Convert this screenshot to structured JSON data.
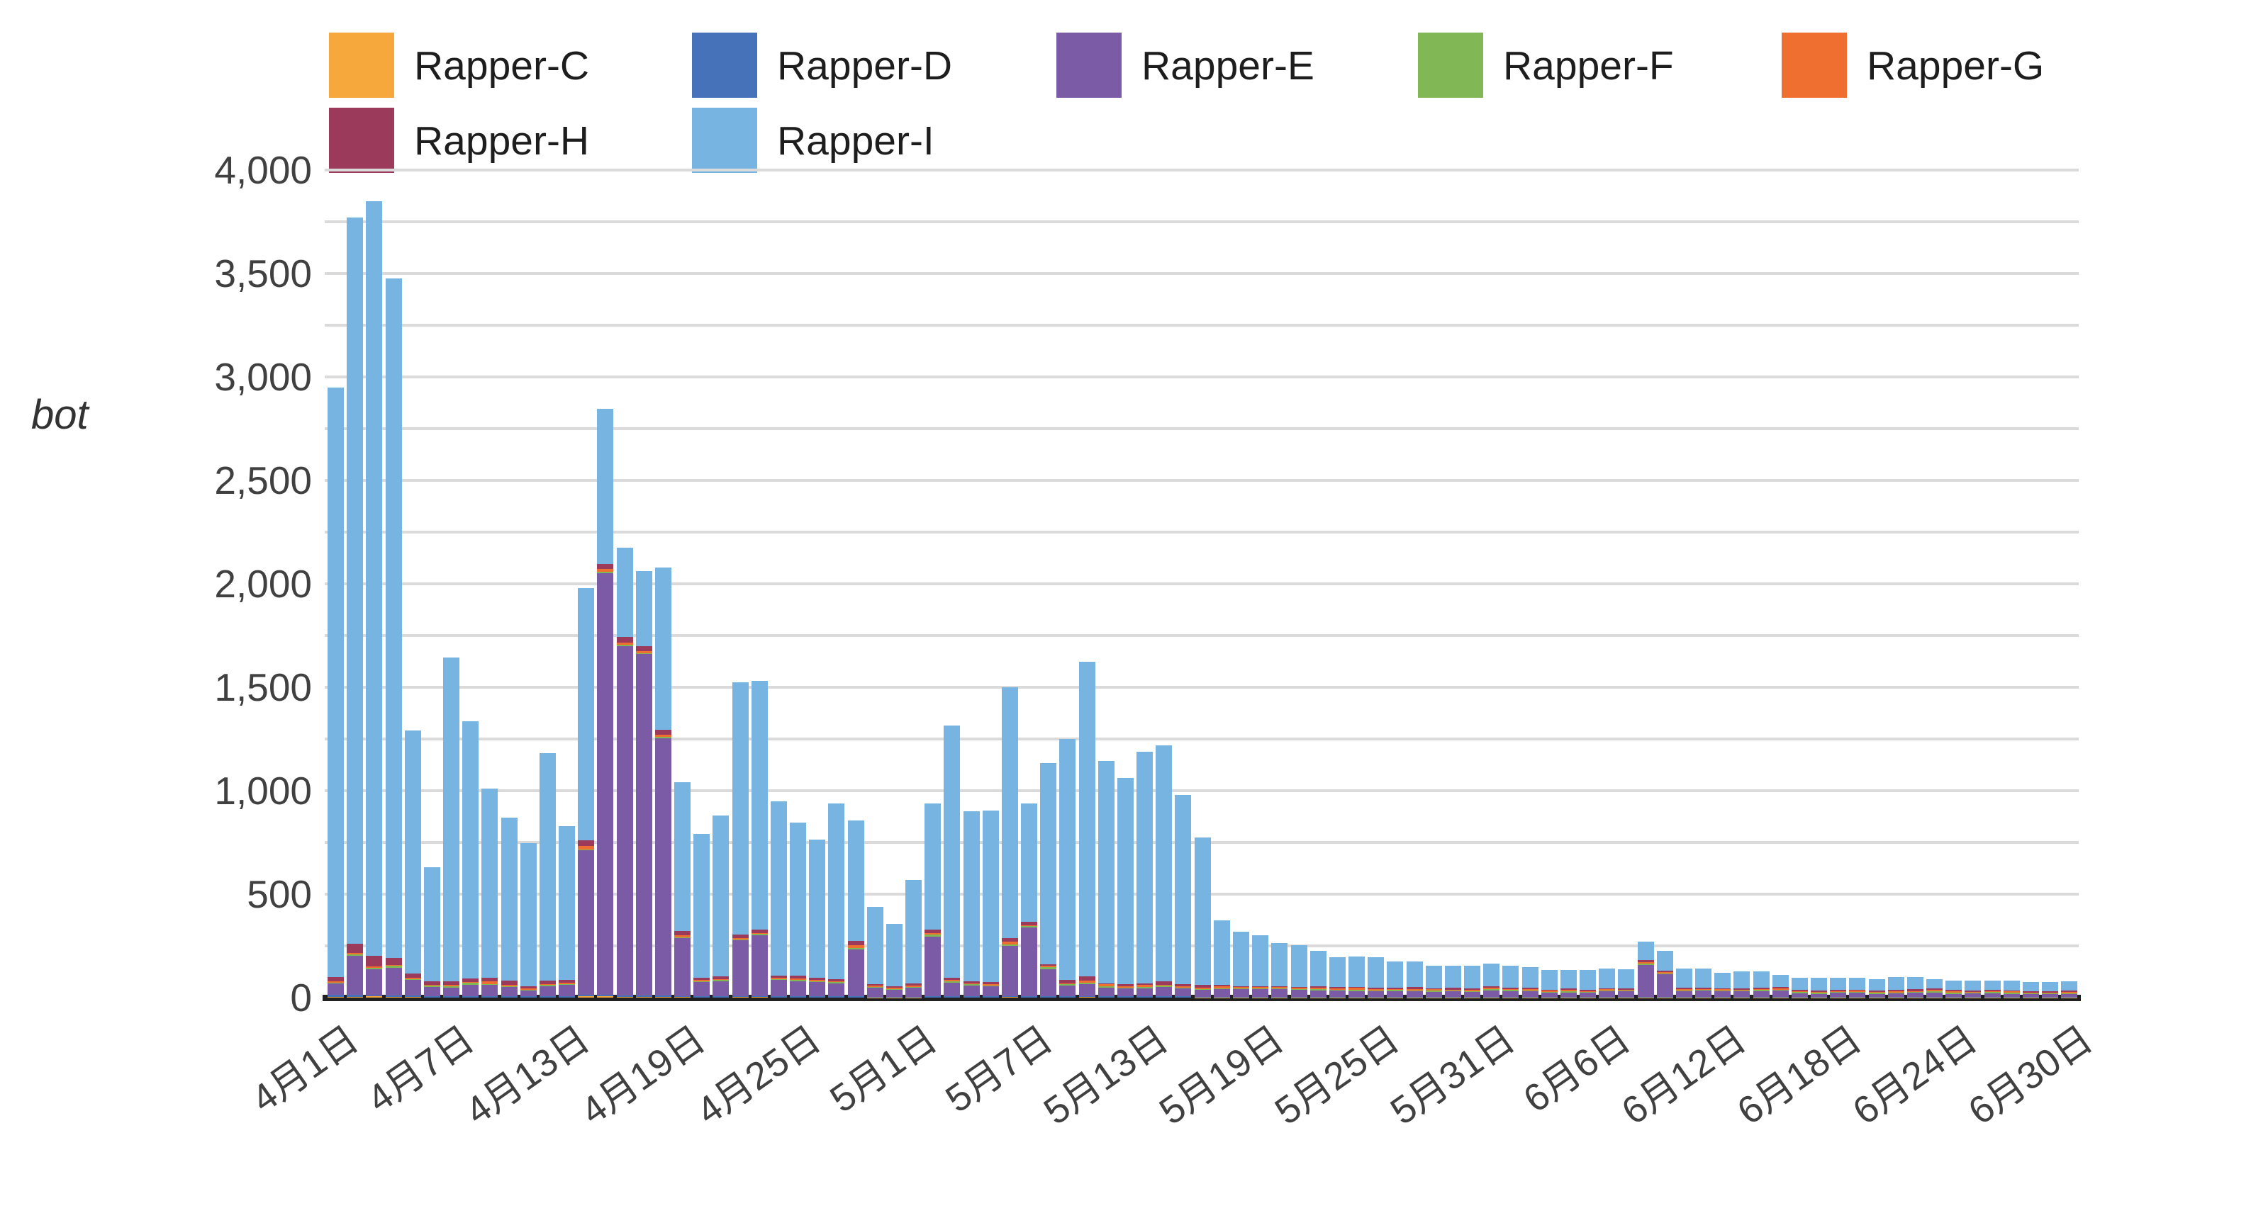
{
  "chart_data": {
    "type": "bar",
    "stacked": true,
    "title": "",
    "ylabel": "bot",
    "ylim": [
      0,
      4000
    ],
    "gridline_interval": 250,
    "label_interval": 500,
    "grid": "on",
    "legend_position": "top-left-two-rows",
    "yticklabels": [
      "0",
      "500",
      "1,000",
      "1,500",
      "2,000",
      "2,500",
      "3,000",
      "3,500",
      "4,000"
    ],
    "xticklabels": [
      "4月1日",
      "4月7日",
      "4月13日",
      "4月19日",
      "4月25日",
      "5月1日",
      "5月7日",
      "5月13日",
      "5月19日",
      "5月25日",
      "5月31日",
      "6月6日",
      "6月12日",
      "6月18日",
      "6月24日",
      "6月30日"
    ],
    "xtick_label_every_n": 6,
    "dates": [
      "4月1日",
      "4月2日",
      "4月3日",
      "4月4日",
      "4月5日",
      "4月6日",
      "4月7日",
      "4月8日",
      "4月9日",
      "4月10日",
      "4月11日",
      "4月12日",
      "4月13日",
      "4月14日",
      "4月15日",
      "4月16日",
      "4月17日",
      "4月18日",
      "4月19日",
      "4月20日",
      "4月21日",
      "4月22日",
      "4月23日",
      "4月24日",
      "4月25日",
      "4月26日",
      "4月27日",
      "4月28日",
      "4月29日",
      "4月30日",
      "5月1日",
      "5月2日",
      "5月3日",
      "5月4日",
      "5月5日",
      "5月6日",
      "5月7日",
      "5月8日",
      "5月9日",
      "5月10日",
      "5月11日",
      "5月12日",
      "5月13日",
      "5月14日",
      "5月15日",
      "5月16日",
      "5月17日",
      "5月18日",
      "5月19日",
      "5月20日",
      "5月21日",
      "5月22日",
      "5月23日",
      "5月24日",
      "5月25日",
      "5月26日",
      "5月27日",
      "5月28日",
      "5月29日",
      "5月30日",
      "5月31日",
      "6月1日",
      "6月2日",
      "6月3日",
      "6月4日",
      "6月5日",
      "6月6日",
      "6月7日",
      "6月8日",
      "6月9日",
      "6月10日",
      "6月11日",
      "6月12日",
      "6月13日",
      "6月14日",
      "6月15日",
      "6月16日",
      "6月17日",
      "6月18日",
      "6月19日",
      "6月20日",
      "6月21日",
      "6月22日",
      "6月23日",
      "6月24日",
      "6月25日",
      "6月26日",
      "6月27日",
      "6月28日",
      "6月29日",
      "6月30日"
    ],
    "series": [
      {
        "name": "Rapper-C",
        "color": "#F6A83C",
        "values": [
          5,
          5,
          6,
          6,
          6,
          4,
          4,
          4,
          4,
          4,
          4,
          4,
          4,
          8,
          8,
          6,
          6,
          6,
          5,
          4,
          4,
          5,
          5,
          4,
          4,
          4,
          4,
          4,
          3,
          3,
          3,
          4,
          4,
          4,
          4,
          5,
          4,
          4,
          4,
          5,
          4,
          4,
          4,
          4,
          4,
          3,
          3,
          3,
          3,
          3,
          3,
          3,
          3,
          3,
          3,
          3,
          3,
          3,
          3,
          3,
          3,
          3,
          3,
          3,
          3,
          3,
          3,
          3,
          3,
          3,
          3,
          3,
          3,
          3,
          3,
          3,
          3,
          3,
          3,
          3,
          3,
          3,
          3,
          3,
          3,
          3,
          3,
          3,
          3,
          3,
          3
        ]
      },
      {
        "name": "Rapper-D",
        "color": "#4672B9",
        "values": [
          8,
          8,
          5,
          4,
          4,
          3,
          3,
          3,
          3,
          3,
          3,
          3,
          3,
          4,
          4,
          4,
          4,
          4,
          3,
          3,
          3,
          3,
          3,
          3,
          3,
          3,
          3,
          3,
          2,
          2,
          2,
          2,
          2,
          2,
          2,
          3,
          2,
          2,
          2,
          3,
          2,
          2,
          2,
          2,
          2,
          2,
          2,
          2,
          2,
          2,
          2,
          2,
          2,
          2,
          2,
          2,
          2,
          2,
          2,
          2,
          2,
          2,
          2,
          2,
          2,
          2,
          2,
          2,
          2,
          2,
          2,
          2,
          2,
          2,
          2,
          2,
          2,
          2,
          2,
          2,
          2,
          2,
          2,
          2,
          2,
          2,
          2,
          2,
          2,
          2,
          2
        ]
      },
      {
        "name": "Rapper-E",
        "color": "#7B5BA6",
        "values": [
          55,
          190,
          125,
          135,
          75,
          45,
          40,
          55,
          55,
          45,
          30,
          50,
          55,
          700,
          2040,
          1690,
          1650,
          1245,
          280,
          70,
          75,
          270,
          295,
          80,
          75,
          70,
          65,
          230,
          45,
          35,
          45,
          290,
          70,
          55,
          50,
          245,
          335,
          130,
          55,
          60,
          45,
          40,
          42,
          48,
          40,
          35,
          38,
          38,
          38,
          35,
          32,
          32,
          28,
          28,
          28,
          28,
          28,
          25,
          27,
          22,
          32,
          28,
          28,
          20,
          23,
          20,
          28,
          26,
          155,
          110,
          26,
          28,
          28,
          26,
          28,
          32,
          18,
          16,
          18,
          18,
          16,
          18,
          20,
          22,
          16,
          18,
          18,
          16,
          13,
          13,
          14
        ]
      },
      {
        "name": "Rapper-F",
        "color": "#81B855",
        "values": [
          5,
          8,
          8,
          8,
          6,
          6,
          8,
          10,
          4,
          4,
          3,
          4,
          4,
          5,
          5,
          5,
          5,
          5,
          4,
          3,
          3,
          4,
          4,
          3,
          3,
          3,
          3,
          3,
          3,
          3,
          3,
          10,
          3,
          3,
          3,
          4,
          4,
          10,
          3,
          3,
          3,
          3,
          3,
          3,
          3,
          3,
          3,
          3,
          3,
          7,
          7,
          3,
          6,
          4,
          3,
          3,
          3,
          3,
          3,
          5,
          3,
          3,
          3,
          5,
          3,
          3,
          3,
          5,
          3,
          3,
          5,
          5,
          3,
          4,
          4,
          3,
          3,
          3,
          5,
          7,
          3,
          3,
          3,
          3,
          3,
          3,
          3,
          3,
          5,
          5,
          3
        ]
      },
      {
        "name": "Rapper-G",
        "color": "#EF6F31",
        "values": [
          5,
          5,
          8,
          5,
          5,
          4,
          5,
          5,
          12,
          5,
          4,
          5,
          5,
          15,
          14,
          10,
          10,
          12,
          10,
          5,
          5,
          6,
          6,
          5,
          8,
          5,
          5,
          12,
          4,
          4,
          4,
          5,
          5,
          5,
          5,
          12,
          5,
          8,
          5,
          12,
          10,
          5,
          9,
          5,
          5,
          4,
          9,
          4,
          4,
          4,
          4,
          9,
          7,
          11,
          4,
          7,
          4,
          8,
          4,
          4,
          9,
          7,
          4,
          4,
          9,
          4,
          5,
          4,
          7,
          7,
          4,
          4,
          4,
          5,
          7,
          4,
          7,
          4,
          4,
          4,
          4,
          4,
          4,
          9,
          9,
          4,
          7,
          7,
          4,
          4,
          4
        ]
      },
      {
        "name": "Rapper-H",
        "color": "#9C3A5C",
        "values": [
          22,
          45,
          50,
          35,
          22,
          16,
          18,
          15,
          18,
          22,
          12,
          16,
          15,
          28,
          25,
          28,
          25,
          22,
          20,
          12,
          14,
          16,
          16,
          12,
          12,
          10,
          10,
          22,
          8,
          8,
          10,
          18,
          12,
          10,
          10,
          20,
          15,
          8,
          18,
          20,
          6,
          12,
          10,
          18,
          10,
          15,
          6,
          6,
          6,
          5,
          5,
          5,
          5,
          5,
          9,
          5,
          10,
          4,
          9,
          8,
          7,
          5,
          9,
          5,
          4,
          7,
          4,
          4,
          13,
          4,
          7,
          6,
          5,
          4,
          4,
          9,
          4,
          7,
          4,
          5,
          7,
          7,
          9,
          4,
          3,
          4,
          4,
          4,
          4,
          4,
          9
        ]
      },
      {
        "name": "Rapper-I",
        "color": "#77B4E1",
        "values": [
          2850,
          3509,
          3648,
          3282,
          1172,
          552,
          1567,
          1243,
          914,
          787,
          689,
          1098,
          744,
          1220,
          749,
          432,
          360,
          786,
          718,
          693,
          776,
          1221,
          1201,
          843,
          740,
          670,
          850,
          581,
          375,
          300,
          503,
          611,
          1219,
          821,
          831,
          1211,
          575,
          973,
          1163,
          1522,
          1075,
          994,
          1120,
          1140,
          916,
          713,
          314,
          264,
          244,
          209,
          199,
          171,
          144,
          147,
          146,
          127,
          125,
          110,
          107,
          111,
          109,
          107,
          99,
          96,
          91,
          96,
          95,
          93,
          87,
          96,
          93,
          92,
          75,
          84,
          80,
          57,
          58,
          60,
          59,
          56,
          55,
          63,
          59,
          47,
          46,
          48,
          45,
          47,
          44,
          44,
          45
        ]
      }
    ]
  }
}
